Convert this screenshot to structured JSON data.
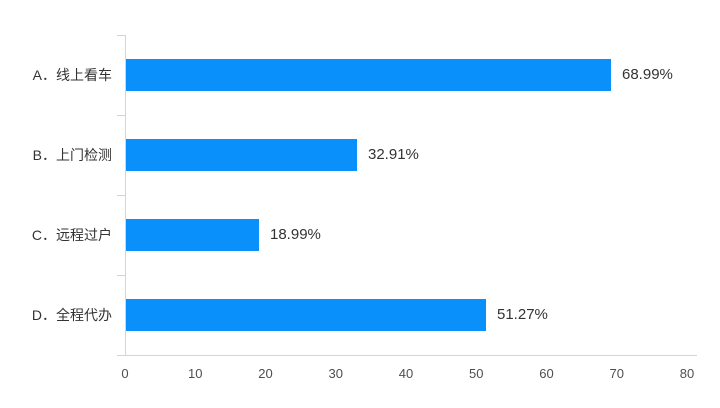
{
  "chart_data": {
    "type": "bar",
    "orientation": "horizontal",
    "title": "",
    "xlabel": "",
    "ylabel": "",
    "categories": [
      "A．线上看车",
      "B．上门检测",
      "C．远程过户",
      "D．全程代办"
    ],
    "values": [
      68.99,
      32.91,
      18.99,
      51.27
    ],
    "value_labels": [
      "68.99%",
      "32.91%",
      "18.99%",
      "51.27%"
    ],
    "xlim": [
      0,
      80
    ],
    "xticks": [
      0,
      10,
      20,
      30,
      40,
      50,
      60,
      70,
      80
    ],
    "grid": false,
    "legend": false,
    "bar_color": "#0a90fb",
    "axis_color": "#ccd5e6",
    "label_color": "#333333",
    "tick_label_color": "#4f4f4f"
  }
}
